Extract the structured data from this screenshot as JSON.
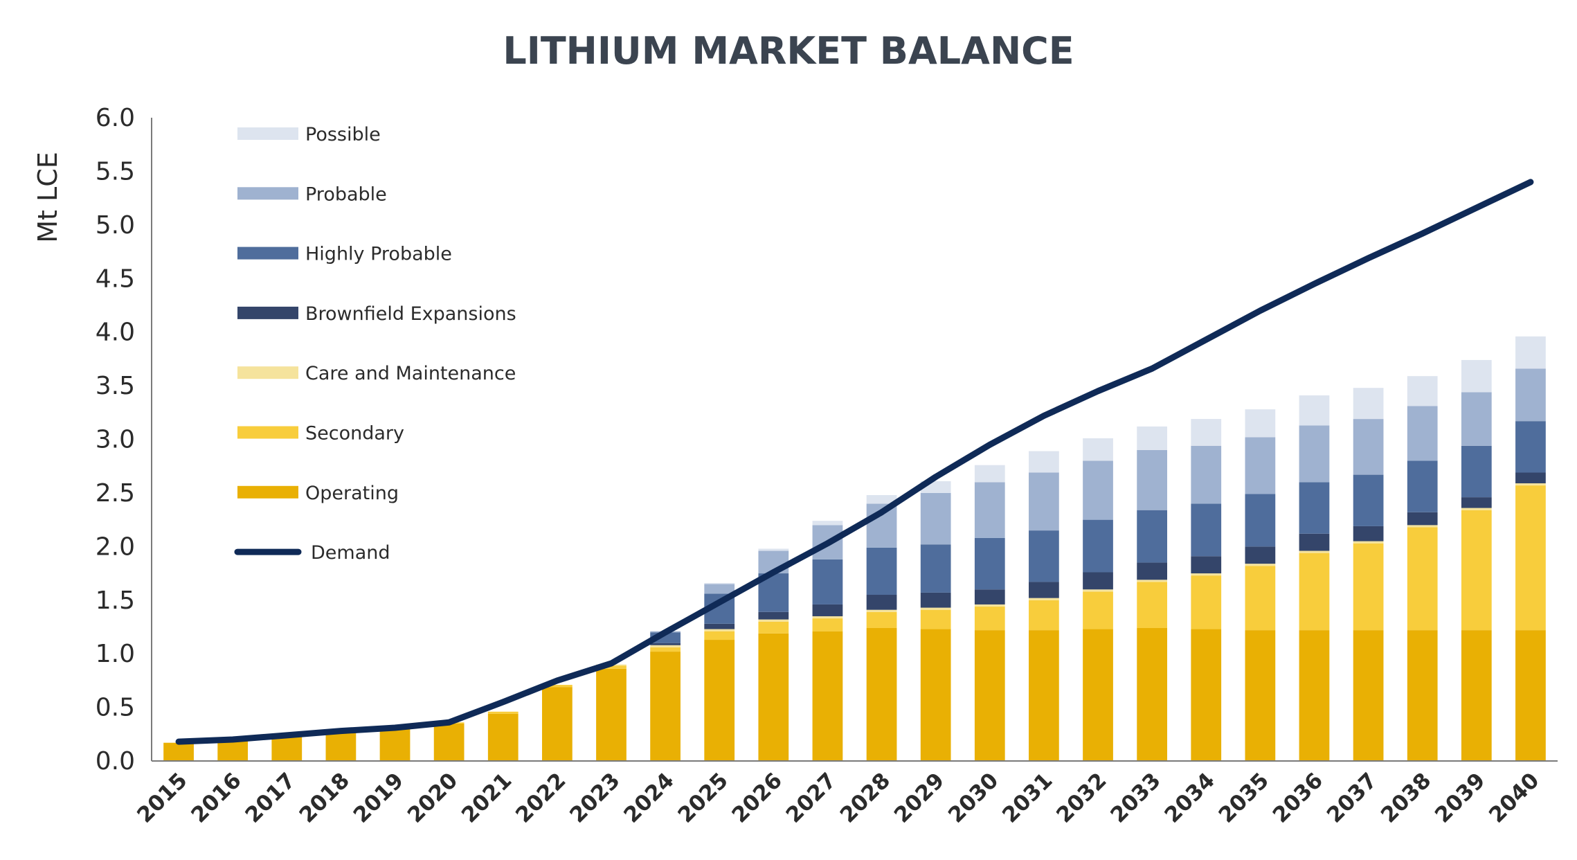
{
  "chart_data": {
    "type": "bar",
    "title": "LITHIUM MARKET BALANCE",
    "xlabel": "",
    "ylabel": "Mt LCE",
    "ylim": [
      0,
      6.0
    ],
    "yticks": [
      "0.0",
      "0.5",
      "1.0",
      "1.5",
      "2.0",
      "2.5",
      "3.0",
      "3.5",
      "4.0",
      "4.5",
      "5.0",
      "5.5",
      "6.0"
    ],
    "legend_position": "top-left",
    "categories": [
      "2015",
      "2016",
      "2017",
      "2018",
      "2019",
      "2020",
      "2021",
      "2022",
      "2023",
      "2024",
      "2025",
      "2026",
      "2027",
      "2028",
      "2029",
      "2030",
      "2031",
      "2032",
      "2033",
      "2034",
      "2035",
      "2036",
      "2037",
      "2038",
      "2039",
      "2040"
    ],
    "series": [
      {
        "name": "Operating",
        "type": "stacked-bar",
        "color": "#e9b004",
        "values": [
          0.17,
          0.19,
          0.23,
          0.27,
          0.31,
          0.35,
          0.44,
          0.69,
          0.86,
          1.02,
          1.13,
          1.19,
          1.21,
          1.24,
          1.23,
          1.22,
          1.22,
          1.23,
          1.24,
          1.23,
          1.22,
          1.22,
          1.22,
          1.22,
          1.22,
          1.22
        ]
      },
      {
        "name": "Secondary",
        "type": "stacked-bar",
        "color": "#f8cd3c",
        "values": [
          0,
          0,
          0,
          0.01,
          0.01,
          0.01,
          0.02,
          0.02,
          0.03,
          0.04,
          0.08,
          0.11,
          0.12,
          0.15,
          0.18,
          0.22,
          0.28,
          0.35,
          0.43,
          0.5,
          0.6,
          0.72,
          0.81,
          0.96,
          1.12,
          1.35
        ]
      },
      {
        "name": "Care and Maintenance",
        "type": "stacked-bar",
        "color": "#f5e39c",
        "values": [
          0,
          0,
          0,
          0,
          0,
          0,
          0,
          0,
          0.01,
          0.02,
          0.02,
          0.02,
          0.02,
          0.02,
          0.02,
          0.02,
          0.02,
          0.02,
          0.02,
          0.02,
          0.02,
          0.02,
          0.02,
          0.02,
          0.02,
          0.02
        ]
      },
      {
        "name": "Brownfield Expansions",
        "type": "stacked-bar",
        "color": "#34456a",
        "values": [
          0,
          0,
          0,
          0,
          0,
          0,
          0,
          0,
          0,
          0.02,
          0.05,
          0.07,
          0.11,
          0.14,
          0.14,
          0.14,
          0.15,
          0.16,
          0.16,
          0.16,
          0.16,
          0.16,
          0.14,
          0.12,
          0.1,
          0.1
        ]
      },
      {
        "name": "Highly Probable",
        "type": "stacked-bar",
        "color": "#4f6d9c",
        "values": [
          0,
          0,
          0,
          0,
          0,
          0,
          0,
          0,
          0,
          0.1,
          0.28,
          0.36,
          0.42,
          0.44,
          0.45,
          0.48,
          0.48,
          0.49,
          0.49,
          0.49,
          0.49,
          0.48,
          0.48,
          0.48,
          0.48,
          0.48
        ]
      },
      {
        "name": "Probable",
        "type": "stacked-bar",
        "color": "#9fb2d0",
        "values": [
          0,
          0,
          0,
          0,
          0,
          0,
          0,
          0,
          0,
          0.01,
          0.09,
          0.21,
          0.32,
          0.41,
          0.48,
          0.52,
          0.54,
          0.55,
          0.56,
          0.54,
          0.53,
          0.53,
          0.52,
          0.51,
          0.5,
          0.49
        ]
      },
      {
        "name": "Possible",
        "type": "stacked-bar",
        "color": "#dde4ef",
        "values": [
          0,
          0,
          0,
          0,
          0,
          0,
          0,
          0,
          0,
          0,
          0.01,
          0.02,
          0.04,
          0.08,
          0.11,
          0.16,
          0.2,
          0.21,
          0.22,
          0.25,
          0.26,
          0.28,
          0.29,
          0.28,
          0.3,
          0.3
        ]
      },
      {
        "name": "Demand",
        "type": "line",
        "color": "#0f2a57",
        "values": [
          0.18,
          0.2,
          0.24,
          0.28,
          0.31,
          0.36,
          0.55,
          0.75,
          0.91,
          1.2,
          1.48,
          1.76,
          2.03,
          2.32,
          2.65,
          2.95,
          3.22,
          3.45,
          3.66,
          3.93,
          4.2,
          4.45,
          4.69,
          4.92,
          5.16,
          5.4
        ]
      }
    ],
    "legend": [
      "Possible",
      "Probable",
      "Highly Probable",
      "Brownfield Expansions",
      "Care and Maintenance",
      "Secondary",
      "Operating",
      "Demand"
    ]
  }
}
